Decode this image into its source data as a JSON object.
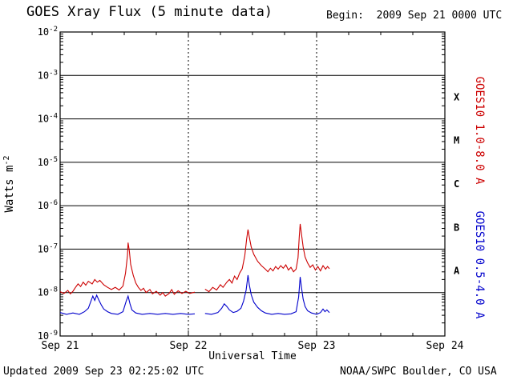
{
  "header": {
    "title": "GOES Xray Flux (5 minute data)",
    "begin_label": "Begin:  2009 Sep 21 0000 UTC"
  },
  "footer": {
    "updated": "Updated 2009 Sep 23 02:25:02 UTC",
    "source": "NOAA/SWPC Boulder, CO USA"
  },
  "chart_data": {
    "type": "line",
    "title": "GOES Xray Flux (5 minute data)",
    "xlabel": "Universal Time",
    "ylabel": "Watts m-2",
    "ylabel_parts": {
      "base": "Watts m",
      "sup": "-2"
    },
    "y_scale": "log10",
    "ylog_range": [
      -9,
      -2
    ],
    "y_tick_base": "10",
    "y_tick_exponents": [
      -2,
      -3,
      -4,
      -5,
      -6,
      -7,
      -8,
      -9
    ],
    "xlim_days": [
      0,
      3
    ],
    "x_ticks": [
      {
        "label": "Sep 21",
        "day": 0
      },
      {
        "label": "Sep 22",
        "day": 1
      },
      {
        "label": "Sep 23",
        "day": 2
      },
      {
        "label": "Sep 24",
        "day": 3
      }
    ],
    "day_gridlines": [
      1,
      2
    ],
    "grid": {
      "horizontal": "solid line per decade",
      "vertical": "dashed line per day"
    },
    "flare_classes": [
      {
        "label": "X",
        "log10_center": -3.5
      },
      {
        "label": "M",
        "log10_center": -4.5
      },
      {
        "label": "C",
        "log10_center": -5.5
      },
      {
        "label": "B",
        "log10_center": -6.5
      },
      {
        "label": "A",
        "log10_center": -7.5
      }
    ],
    "series": [
      {
        "name": "GOES10 1.0-8.0 A",
        "color": "#cc0000",
        "region": "upper",
        "points_day_log10flux": [
          [
            0.0,
            -7.98
          ],
          [
            0.03,
            -8.02
          ],
          [
            0.06,
            -7.95
          ],
          [
            0.08,
            -8.03
          ],
          [
            0.1,
            -7.97
          ],
          [
            0.12,
            -7.88
          ],
          [
            0.14,
            -7.8
          ],
          [
            0.16,
            -7.86
          ],
          [
            0.18,
            -7.76
          ],
          [
            0.2,
            -7.83
          ],
          [
            0.22,
            -7.74
          ],
          [
            0.25,
            -7.8
          ],
          [
            0.27,
            -7.7
          ],
          [
            0.29,
            -7.76
          ],
          [
            0.31,
            -7.72
          ],
          [
            0.34,
            -7.82
          ],
          [
            0.37,
            -7.88
          ],
          [
            0.4,
            -7.93
          ],
          [
            0.43,
            -7.88
          ],
          [
            0.46,
            -7.94
          ],
          [
            0.49,
            -7.85
          ],
          [
            0.51,
            -7.55
          ],
          [
            0.525,
            -7.15
          ],
          [
            0.53,
            -6.85
          ],
          [
            0.54,
            -7.05
          ],
          [
            0.55,
            -7.35
          ],
          [
            0.57,
            -7.6
          ],
          [
            0.59,
            -7.78
          ],
          [
            0.61,
            -7.88
          ],
          [
            0.63,
            -7.95
          ],
          [
            0.65,
            -7.9
          ],
          [
            0.67,
            -8.0
          ],
          [
            0.7,
            -7.93
          ],
          [
            0.72,
            -8.03
          ],
          [
            0.75,
            -7.97
          ],
          [
            0.78,
            -8.06
          ],
          [
            0.8,
            -8.0
          ],
          [
            0.82,
            -8.08
          ],
          [
            0.85,
            -8.02
          ],
          [
            0.87,
            -7.93
          ],
          [
            0.89,
            -8.04
          ],
          [
            0.92,
            -7.96
          ],
          [
            0.95,
            -8.02
          ],
          [
            0.98,
            -7.97
          ],
          [
            1.01,
            -8.02
          ],
          [
            1.05,
            -7.99
          ],
          null,
          [
            1.13,
            -7.92
          ],
          [
            1.16,
            -7.98
          ],
          [
            1.19,
            -7.88
          ],
          [
            1.22,
            -7.94
          ],
          [
            1.25,
            -7.82
          ],
          [
            1.27,
            -7.88
          ],
          [
            1.3,
            -7.76
          ],
          [
            1.32,
            -7.7
          ],
          [
            1.34,
            -7.78
          ],
          [
            1.36,
            -7.62
          ],
          [
            1.38,
            -7.7
          ],
          [
            1.4,
            -7.55
          ],
          [
            1.42,
            -7.45
          ],
          [
            1.44,
            -7.15
          ],
          [
            1.455,
            -6.75
          ],
          [
            1.465,
            -6.55
          ],
          [
            1.475,
            -6.72
          ],
          [
            1.49,
            -6.95
          ],
          [
            1.51,
            -7.12
          ],
          [
            1.54,
            -7.28
          ],
          [
            1.57,
            -7.38
          ],
          [
            1.6,
            -7.46
          ],
          [
            1.62,
            -7.52
          ],
          [
            1.64,
            -7.44
          ],
          [
            1.66,
            -7.5
          ],
          [
            1.68,
            -7.4
          ],
          [
            1.7,
            -7.46
          ],
          [
            1.72,
            -7.38
          ],
          [
            1.74,
            -7.44
          ],
          [
            1.76,
            -7.36
          ],
          [
            1.78,
            -7.48
          ],
          [
            1.8,
            -7.42
          ],
          [
            1.82,
            -7.52
          ],
          [
            1.84,
            -7.46
          ],
          [
            1.855,
            -7.2
          ],
          [
            1.865,
            -6.7
          ],
          [
            1.872,
            -6.42
          ],
          [
            1.882,
            -6.65
          ],
          [
            1.895,
            -6.95
          ],
          [
            1.91,
            -7.18
          ],
          [
            1.93,
            -7.32
          ],
          [
            1.95,
            -7.42
          ],
          [
            1.97,
            -7.36
          ],
          [
            1.99,
            -7.48
          ],
          [
            2.01,
            -7.4
          ],
          [
            2.03,
            -7.5
          ],
          [
            2.05,
            -7.38
          ],
          [
            2.07,
            -7.46
          ],
          [
            2.085,
            -7.4
          ],
          [
            2.1,
            -7.45
          ]
        ]
      },
      {
        "name": "GOES10 0.5-4.0 A",
        "color": "#0000cc",
        "region": "lower",
        "points_day_log10flux": [
          [
            0.0,
            -8.46
          ],
          [
            0.05,
            -8.5
          ],
          [
            0.1,
            -8.47
          ],
          [
            0.15,
            -8.5
          ],
          [
            0.19,
            -8.44
          ],
          [
            0.22,
            -8.36
          ],
          [
            0.24,
            -8.2
          ],
          [
            0.255,
            -8.08
          ],
          [
            0.27,
            -8.18
          ],
          [
            0.285,
            -8.06
          ],
          [
            0.3,
            -8.16
          ],
          [
            0.32,
            -8.28
          ],
          [
            0.34,
            -8.38
          ],
          [
            0.37,
            -8.44
          ],
          [
            0.4,
            -8.48
          ],
          [
            0.45,
            -8.5
          ],
          [
            0.49,
            -8.44
          ],
          [
            0.515,
            -8.2
          ],
          [
            0.53,
            -8.08
          ],
          [
            0.545,
            -8.26
          ],
          [
            0.56,
            -8.4
          ],
          [
            0.59,
            -8.47
          ],
          [
            0.64,
            -8.5
          ],
          [
            0.7,
            -8.48
          ],
          [
            0.76,
            -8.5
          ],
          [
            0.82,
            -8.48
          ],
          [
            0.88,
            -8.5
          ],
          [
            0.94,
            -8.48
          ],
          [
            1.0,
            -8.5
          ],
          [
            1.05,
            -8.49
          ],
          null,
          [
            1.13,
            -8.48
          ],
          [
            1.18,
            -8.5
          ],
          [
            1.23,
            -8.46
          ],
          [
            1.26,
            -8.36
          ],
          [
            1.28,
            -8.26
          ],
          [
            1.3,
            -8.32
          ],
          [
            1.32,
            -8.4
          ],
          [
            1.35,
            -8.46
          ],
          [
            1.38,
            -8.43
          ],
          [
            1.41,
            -8.36
          ],
          [
            1.43,
            -8.2
          ],
          [
            1.45,
            -7.95
          ],
          [
            1.465,
            -7.6
          ],
          [
            1.475,
            -7.82
          ],
          [
            1.49,
            -8.05
          ],
          [
            1.51,
            -8.22
          ],
          [
            1.54,
            -8.34
          ],
          [
            1.57,
            -8.42
          ],
          [
            1.6,
            -8.47
          ],
          [
            1.65,
            -8.5
          ],
          [
            1.7,
            -8.48
          ],
          [
            1.75,
            -8.5
          ],
          [
            1.8,
            -8.49
          ],
          [
            1.84,
            -8.44
          ],
          [
            1.86,
            -8.1
          ],
          [
            1.872,
            -7.64
          ],
          [
            1.882,
            -7.88
          ],
          [
            1.895,
            -8.15
          ],
          [
            1.91,
            -8.32
          ],
          [
            1.93,
            -8.42
          ],
          [
            1.96,
            -8.47
          ],
          [
            2.0,
            -8.5
          ],
          [
            2.03,
            -8.46
          ],
          [
            2.05,
            -8.38
          ],
          [
            2.065,
            -8.44
          ],
          [
            2.08,
            -8.4
          ],
          [
            2.1,
            -8.46
          ]
        ]
      }
    ]
  }
}
